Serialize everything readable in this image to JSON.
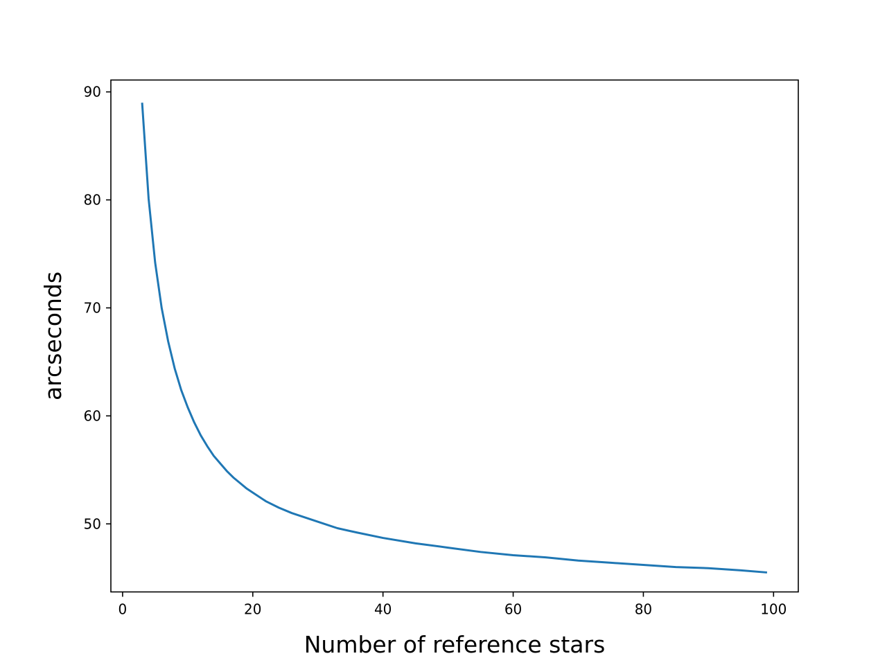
{
  "chart_data": {
    "type": "line",
    "title": "",
    "xlabel": "Number of reference stars",
    "ylabel": "arcseconds",
    "xlim": [
      -1.8,
      103.8
    ],
    "ylim": [
      43.7,
      91.1
    ],
    "xticks": [
      0,
      20,
      40,
      60,
      80,
      100
    ],
    "yticks": [
      50,
      60,
      70,
      80,
      90
    ],
    "grid": false,
    "legend": "none",
    "series": [
      {
        "color": "#1f77b4",
        "x": [
          3,
          4,
          5,
          6,
          7,
          8,
          9,
          10,
          11,
          12,
          13,
          14,
          15,
          16,
          17,
          18,
          19,
          20,
          22,
          24,
          26,
          28,
          30,
          33,
          36,
          40,
          45,
          50,
          55,
          60,
          65,
          70,
          75,
          80,
          85,
          90,
          95,
          99
        ],
        "y": [
          89.0,
          80.1,
          74.2,
          70.0,
          66.9,
          64.4,
          62.4,
          60.8,
          59.4,
          58.2,
          57.2,
          56.3,
          55.6,
          54.9,
          54.3,
          53.8,
          53.3,
          52.9,
          52.1,
          51.5,
          51.0,
          50.6,
          50.2,
          49.6,
          49.2,
          48.7,
          48.2,
          47.8,
          47.4,
          47.1,
          46.9,
          46.6,
          46.4,
          46.2,
          46.0,
          45.9,
          45.7,
          45.5
        ]
      }
    ]
  }
}
